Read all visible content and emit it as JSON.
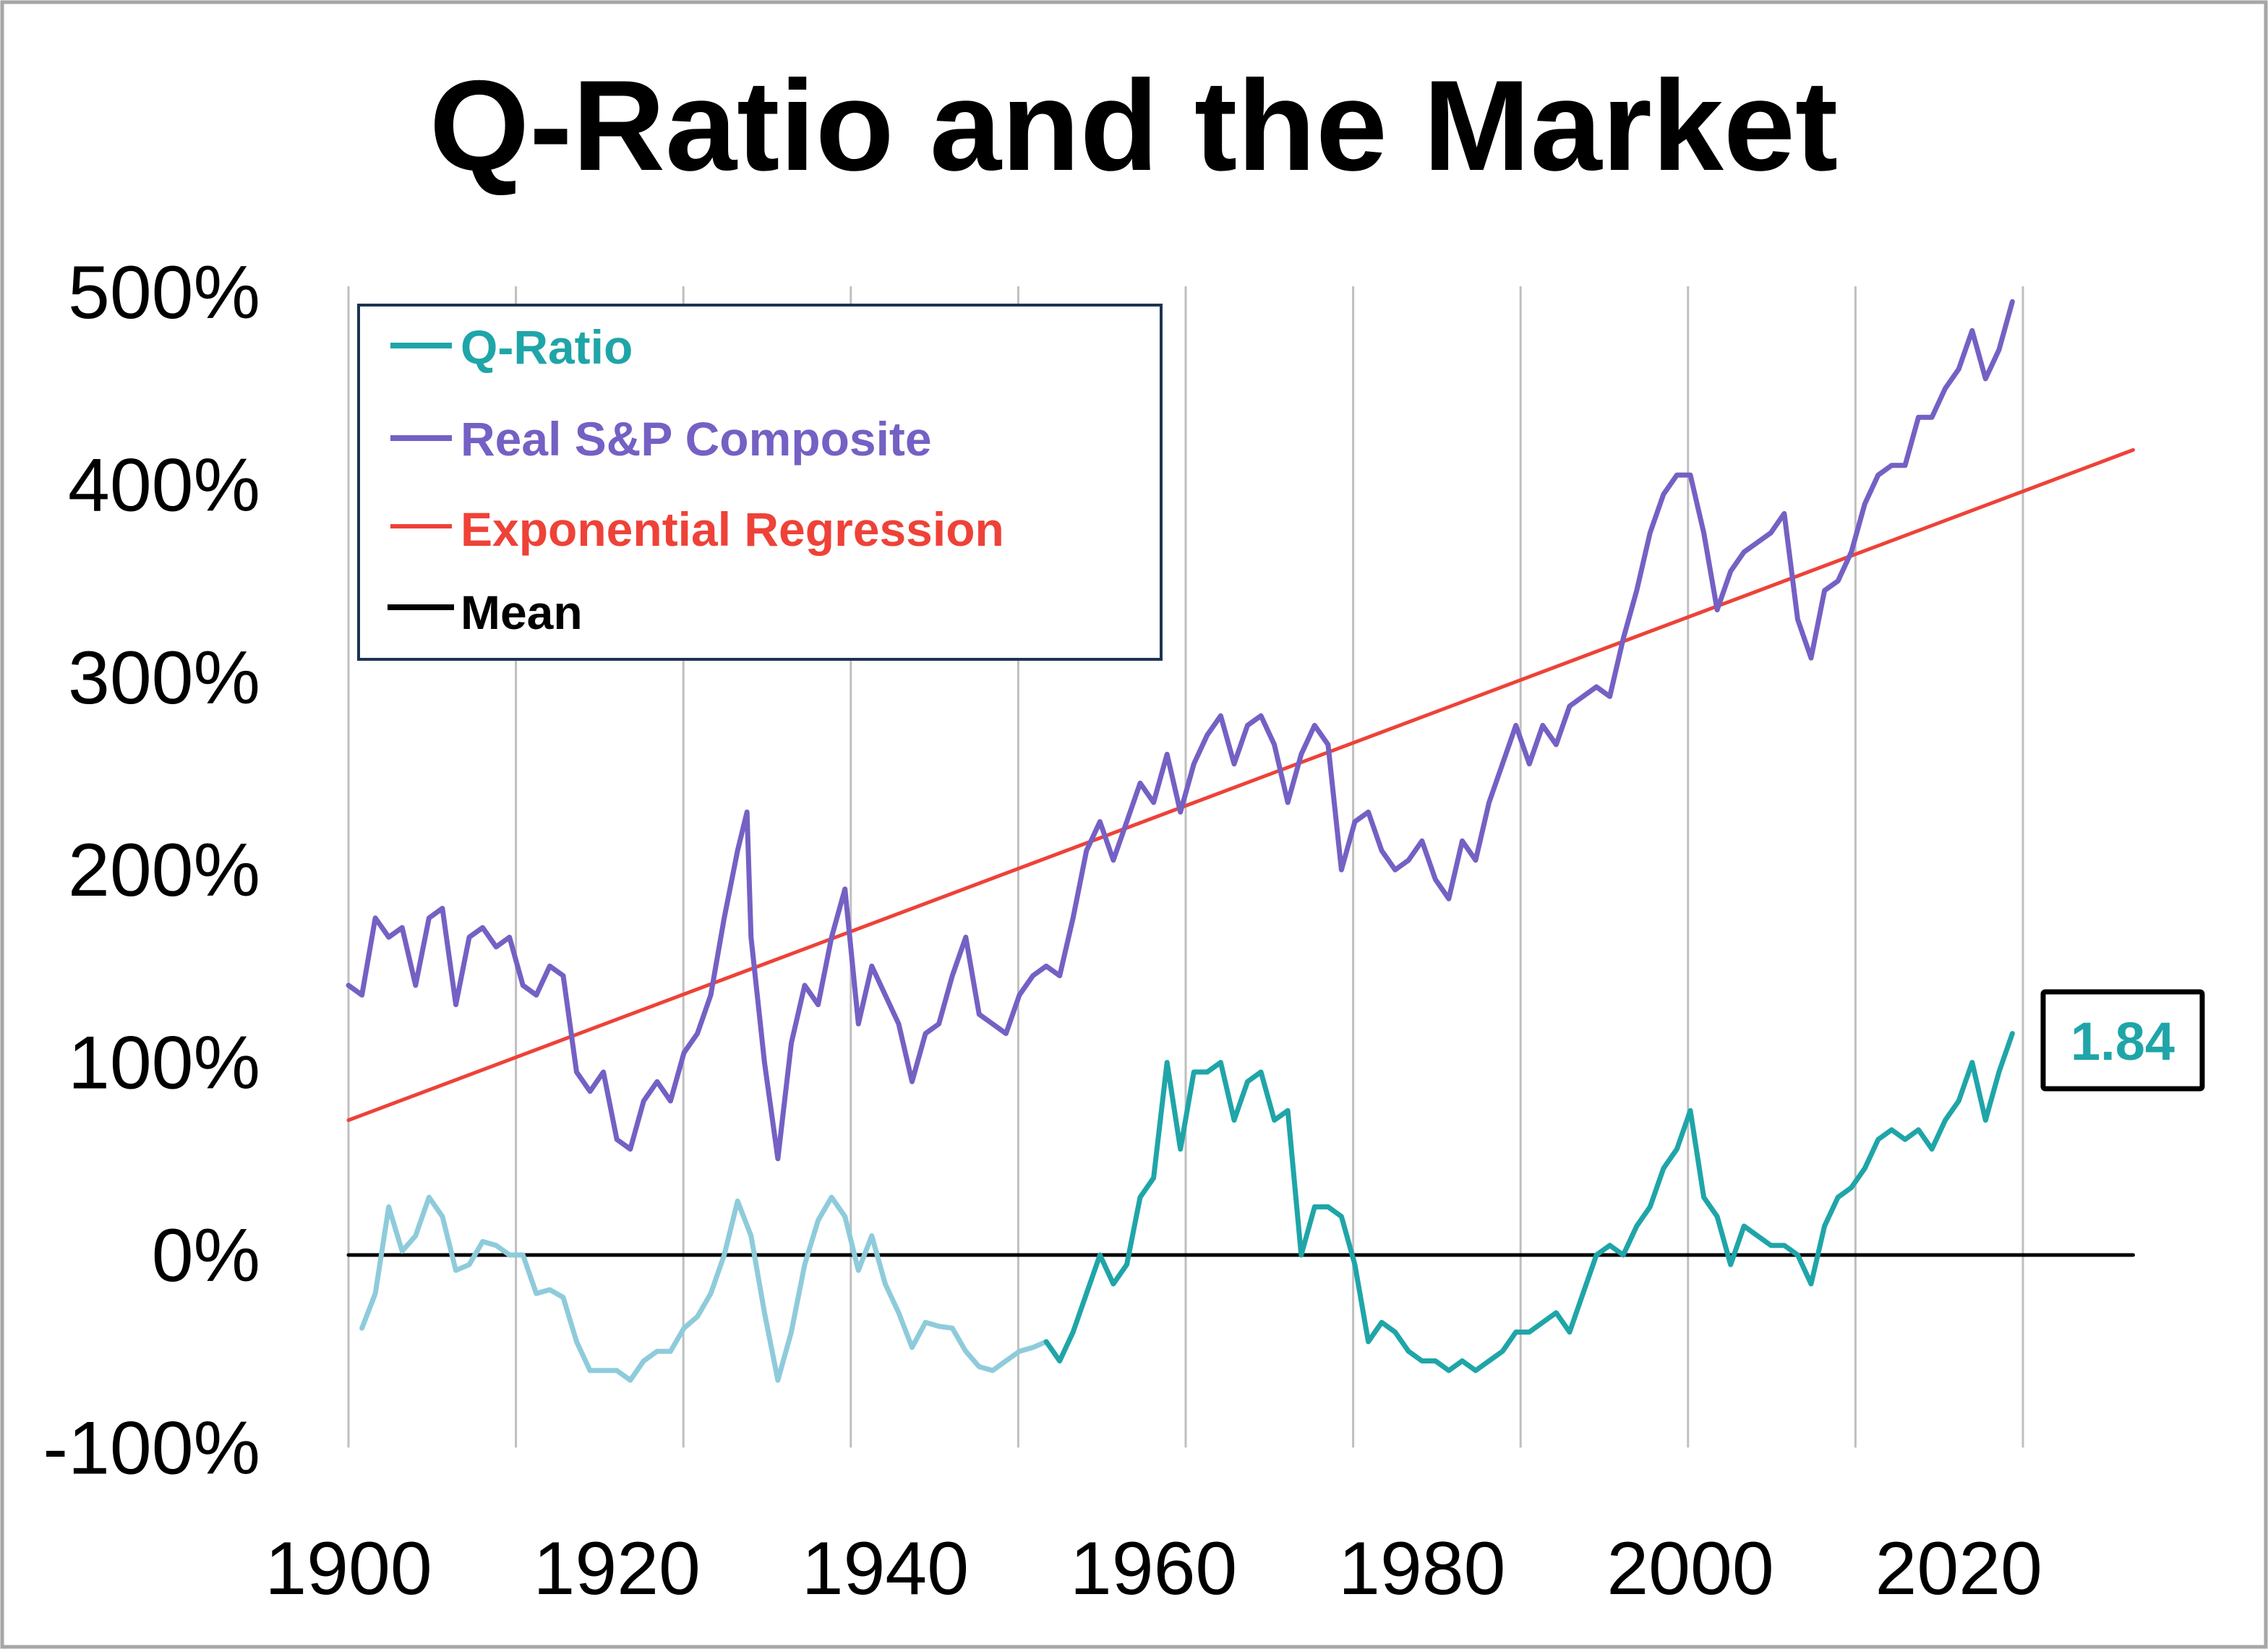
{
  "chart_data": {
    "type": "line",
    "title": "Q-Ratio and the Market",
    "xlabel": "",
    "ylabel": "",
    "xlim": [
      1900,
      2033
    ],
    "ylim": [
      -100,
      500
    ],
    "x_ticks": [
      "1900",
      "1920",
      "1940",
      "1960",
      "1980",
      "2000",
      "2020"
    ],
    "y_ticks": [
      "500%",
      "400%",
      "300%",
      "200%",
      "100%",
      "0%",
      "-100%"
    ],
    "grid": "vertical",
    "legend_position": "top-left",
    "legend": [
      "Q-Ratio",
      "Real S&P Composite",
      "Exponential Regression",
      "Mean"
    ],
    "colors": {
      "q_ratio": "#1fa5a8",
      "q_ratio_early": "#8ecbdb",
      "sp": "#7560c4",
      "regression": "#ee4238",
      "mean": "#000000"
    },
    "annotation": {
      "text": "1.84",
      "color": "#1fa5a8"
    },
    "series": [
      {
        "name": "Q-Ratio",
        "segment": "early",
        "x": [
          1901,
          1902,
          1903,
          1904,
          1905,
          1906,
          1907,
          1908,
          1909,
          1910,
          1911,
          1912,
          1913,
          1914,
          1915,
          1916,
          1917,
          1918,
          1919,
          1920,
          1921,
          1922,
          1923,
          1924,
          1925,
          1926,
          1927,
          1928,
          1929,
          1930,
          1931,
          1932,
          1933,
          1934,
          1935,
          1936,
          1937,
          1938,
          1939,
          1940,
          1941,
          1942,
          1943,
          1944,
          1945,
          1946,
          1947,
          1948,
          1949,
          1950,
          1951,
          1952
        ],
        "y": [
          -38,
          -20,
          25,
          2,
          10,
          30,
          20,
          -8,
          -5,
          7,
          5,
          0,
          0,
          -20,
          -18,
          -22,
          -45,
          -60,
          -60,
          -60,
          -65,
          -55,
          -50,
          -50,
          -38,
          -32,
          -20,
          0,
          28,
          10,
          -30,
          -65,
          -40,
          -5,
          18,
          30,
          20,
          -8,
          10,
          -15,
          -30,
          -48,
          -35,
          -37,
          -38,
          -50,
          -58,
          -60,
          -55,
          -50,
          -48,
          -45
        ]
      },
      {
        "name": "Q-Ratio",
        "segment": "recent",
        "x": [
          1952,
          1953,
          1954,
          1955,
          1956,
          1957,
          1958,
          1959,
          1960,
          1961,
          1962,
          1963,
          1964,
          1965,
          1966,
          1967,
          1968,
          1969,
          1970,
          1971,
          1972,
          1973,
          1974,
          1975,
          1976,
          1977,
          1978,
          1979,
          1980,
          1981,
          1982,
          1983,
          1984,
          1985,
          1986,
          1987,
          1988,
          1989,
          1990,
          1991,
          1992,
          1993,
          1994,
          1995,
          1996,
          1997,
          1998,
          1999,
          2000,
          2001,
          2002,
          2003,
          2004,
          2005,
          2006,
          2007,
          2008,
          2009,
          2010,
          2011,
          2012,
          2013,
          2014,
          2015,
          2016,
          2017,
          2018,
          2019,
          2020,
          2021,
          2022,
          2023,
          2024
        ],
        "y": [
          -45,
          -55,
          -40,
          -20,
          0,
          -15,
          -5,
          30,
          40,
          100,
          55,
          95,
          95,
          100,
          70,
          90,
          95,
          70,
          75,
          0,
          25,
          25,
          20,
          -5,
          -45,
          -35,
          -40,
          -50,
          -55,
          -55,
          -60,
          -55,
          -60,
          -55,
          -50,
          -40,
          -40,
          -35,
          -30,
          -40,
          -20,
          0,
          5,
          0,
          15,
          25,
          45,
          55,
          75,
          30,
          20,
          -5,
          15,
          10,
          5,
          5,
          0,
          -15,
          15,
          30,
          35,
          45,
          60,
          65,
          60,
          65,
          55,
          70,
          80,
          100,
          70,
          95,
          115
        ]
      },
      {
        "name": "Real S&P Composite",
        "x": [
          1900,
          1901,
          1902,
          1903,
          1904,
          1905,
          1906,
          1907,
          1908,
          1909,
          1910,
          1911,
          1912,
          1913,
          1914,
          1915,
          1916,
          1917,
          1918,
          1919,
          1920,
          1921,
          1922,
          1923,
          1924,
          1925,
          1926,
          1927,
          1928,
          1929,
          1929.7,
          1930,
          1931,
          1932,
          1933,
          1934,
          1935,
          1936,
          1937,
          1938,
          1939,
          1940,
          1941,
          1942,
          1943,
          1944,
          1945,
          1946,
          1947,
          1948,
          1949,
          1950,
          1951,
          1952,
          1953,
          1954,
          1955,
          1956,
          1957,
          1958,
          1959,
          1960,
          1961,
          1962,
          1963,
          1964,
          1965,
          1966,
          1967,
          1968,
          1969,
          1970,
          1971,
          1972,
          1973,
          1974,
          1975,
          1976,
          1977,
          1978,
          1979,
          1980,
          1981,
          1982,
          1983,
          1984,
          1985,
          1986,
          1987,
          1988,
          1989,
          1990,
          1991,
          1992,
          1993,
          1994,
          1995,
          1996,
          1997,
          1998,
          1999,
          2000,
          2001,
          2002,
          2003,
          2004,
          2005,
          2006,
          2007,
          2008,
          2009,
          2010,
          2011,
          2012,
          2013,
          2014,
          2015,
          2016,
          2017,
          2018,
          2019,
          2020,
          2021,
          2022,
          2023,
          2024
        ],
        "y": [
          140,
          135,
          175,
          165,
          170,
          140,
          175,
          180,
          130,
          165,
          170,
          160,
          165,
          140,
          135,
          150,
          145,
          95,
          85,
          95,
          60,
          55,
          80,
          90,
          80,
          105,
          115,
          135,
          175,
          210,
          230,
          165,
          100,
          50,
          110,
          140,
          130,
          165,
          190,
          120,
          150,
          135,
          120,
          90,
          115,
          120,
          145,
          165,
          125,
          120,
          115,
          135,
          145,
          150,
          145,
          175,
          210,
          225,
          205,
          225,
          245,
          235,
          260,
          230,
          255,
          270,
          280,
          255,
          275,
          280,
          265,
          235,
          260,
          275,
          265,
          200,
          225,
          230,
          210,
          200,
          205,
          215,
          195,
          185,
          215,
          205,
          235,
          255,
          275,
          255,
          275,
          265,
          285,
          290,
          295,
          290,
          320,
          345,
          375,
          395,
          405,
          405,
          375,
          335,
          355,
          365,
          370,
          375,
          385,
          330,
          310,
          345,
          350,
          365,
          390,
          405,
          410,
          410,
          435,
          435,
          450,
          460,
          480,
          455,
          470,
          495
        ]
      },
      {
        "name": "Exponential Regression",
        "x": [
          1900,
          2033
        ],
        "y": [
          70,
          418
        ]
      },
      {
        "name": "Mean",
        "x": [
          1900,
          2033
        ],
        "y": [
          0,
          0
        ]
      }
    ]
  }
}
